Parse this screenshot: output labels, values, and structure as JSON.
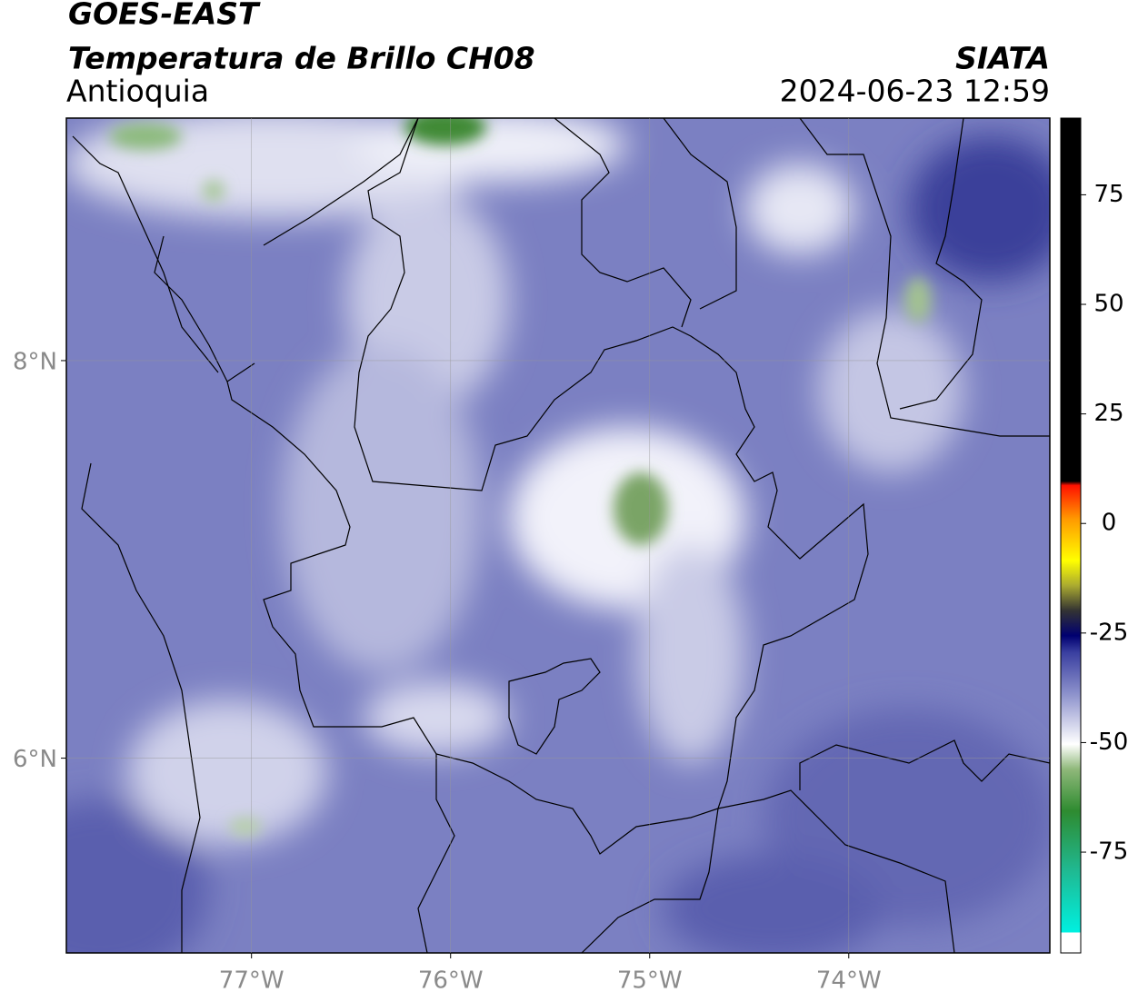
{
  "header": {
    "title": "GOES-EAST",
    "subtitle": "Temperatura de Brillo CH08",
    "region": "Antioquia",
    "source": "SIATA",
    "datetime": "2024-06-23 12:59"
  },
  "map": {
    "xlim": [
      -77.93,
      -72.99
    ],
    "ylim": [
      5.02,
      9.22
    ],
    "xticks": [
      {
        "value": -77,
        "label": "77°W"
      },
      {
        "value": -76,
        "label": "76°W"
      },
      {
        "value": -75,
        "label": "75°W"
      },
      {
        "value": -74,
        "label": "74°W"
      }
    ],
    "yticks": [
      {
        "value": 8,
        "label": "8°N"
      },
      {
        "value": 6,
        "label": "6°N"
      }
    ],
    "grid": true
  },
  "colorbar": {
    "lim": [
      -98,
      92.5
    ],
    "ticks": [
      75,
      50,
      25,
      0,
      -25,
      -50,
      -75
    ]
  }
}
